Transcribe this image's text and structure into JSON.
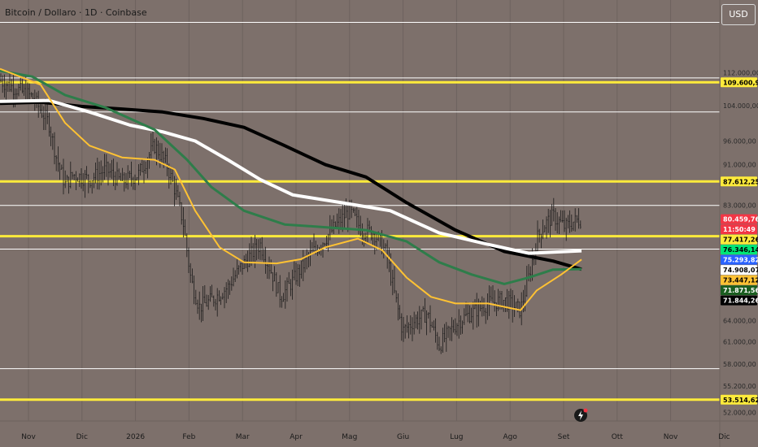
{
  "header": {
    "title": "Bitcoin / Dollaro · 1D · Coinbase"
  },
  "currency_button": {
    "label": "USD"
  },
  "chart_data": {
    "type": "candlestick",
    "title": "Bitcoin / Dollaro · 1D · Coinbase",
    "y_scale": "log",
    "ylim": [
      51000,
      132000
    ],
    "x_tick_labels": [
      "Nov",
      "Dic",
      "2026",
      "Feb",
      "Mar",
      "Apr",
      "Mag",
      "Giu",
      "Lug",
      "Ago",
      "Set",
      "Ott",
      "Nov",
      "Dic"
    ],
    "y_tick_labels": [
      52000,
      55200,
      58000,
      61000,
      64000,
      83000,
      91000,
      96000,
      104000,
      112000
    ],
    "y_tick_text": [
      "52.000,00",
      "55.200,00",
      "58.000,00",
      "61.000,00",
      "64.000,00",
      "83.000,00",
      "91.000,00",
      "96.000,00",
      "104.000,00",
      "112.000,00"
    ],
    "horizontal_levels": {
      "yellow": [
        109600.97,
        87612.25,
        77417.26,
        53514.62
      ],
      "white": [
        125500,
        110700,
        102500,
        83000,
        75200,
        57400
      ]
    },
    "price_labels": [
      {
        "text": "109.600,97",
        "value": 109600.97,
        "bg": "#ffeb3b",
        "fg": "#000000"
      },
      {
        "text": "87.612,25",
        "value": 87612.25,
        "bg": "#ffeb3b",
        "fg": "#000000"
      },
      {
        "text": "80.459,76",
        "value": 80459.76,
        "bg": "#f23645",
        "fg": "#ffffff"
      },
      {
        "text": "11:50:49",
        "value": 79200,
        "bg": "#f23645",
        "fg": "#ffffff"
      },
      {
        "text": "77.417,26",
        "value": 77417.26,
        "bg": "#ffeb3b",
        "fg": "#000000"
      },
      {
        "text": "76.346,14",
        "value": 76346.14,
        "bg": "#00e676",
        "fg": "#000000"
      },
      {
        "text": "75.293,82",
        "value": 75293.82,
        "bg": "#2962ff",
        "fg": "#ffffff"
      },
      {
        "text": "74.908,07",
        "value": 74908.07,
        "bg": "#ffffff",
        "fg": "#000000"
      },
      {
        "text": "73.447,12",
        "value": 73447.12,
        "bg": "#ffc233",
        "fg": "#000000"
      },
      {
        "text": "71.871,56",
        "value": 71871.56,
        "bg": "#1b5e20",
        "fg": "#ffffff"
      },
      {
        "text": "71.844,26",
        "value": 71844.26,
        "bg": "#000000",
        "fg": "#ffffff"
      },
      {
        "text": "53.514,62",
        "value": 53514.62,
        "bg": "#ffeb3b",
        "fg": "#000000"
      }
    ],
    "moving_averages": [
      {
        "color": "#000000",
        "points": [
          [
            0,
            104500
          ],
          [
            50,
            104800
          ],
          [
            100,
            103800
          ],
          [
            150,
            103200
          ],
          [
            200,
            102500
          ],
          [
            250,
            101000
          ],
          [
            300,
            99000
          ],
          [
            350,
            95000
          ],
          [
            400,
            91000
          ],
          [
            450,
            88500
          ],
          [
            500,
            83500
          ],
          [
            560,
            78500
          ],
          [
            620,
            74800
          ],
          [
            680,
            73200
          ],
          [
            715,
            71844
          ]
        ]
      },
      {
        "color": "#ffffff",
        "points": [
          [
            0,
            105000
          ],
          [
            60,
            105200
          ],
          [
            110,
            102500
          ],
          [
            160,
            99500
          ],
          [
            200,
            98000
          ],
          [
            240,
            96000
          ],
          [
            280,
            92000
          ],
          [
            320,
            88000
          ],
          [
            360,
            85000
          ],
          [
            420,
            83500
          ],
          [
            480,
            82000
          ],
          [
            540,
            78000
          ],
          [
            600,
            76000
          ],
          [
            650,
            74500
          ],
          [
            715,
            74908
          ]
        ]
      },
      {
        "color": "#2e7d4a",
        "points": [
          [
            0,
            112500
          ],
          [
            40,
            111000
          ],
          [
            80,
            106500
          ],
          [
            130,
            103500
          ],
          [
            190,
            98500
          ],
          [
            230,
            92000
          ],
          [
            260,
            86500
          ],
          [
            300,
            82000
          ],
          [
            350,
            79500
          ],
          [
            400,
            79000
          ],
          [
            450,
            78500
          ],
          [
            500,
            76500
          ],
          [
            540,
            73000
          ],
          [
            580,
            71000
          ],
          [
            620,
            69500
          ],
          [
            650,
            70500
          ],
          [
            680,
            71800
          ],
          [
            715,
            71872
          ]
        ]
      },
      {
        "color": "#ffc233",
        "points": [
          [
            0,
            113000
          ],
          [
            50,
            109000
          ],
          [
            80,
            100000
          ],
          [
            110,
            95000
          ],
          [
            150,
            92500
          ],
          [
            190,
            92000
          ],
          [
            215,
            90000
          ],
          [
            240,
            82000
          ],
          [
            270,
            75500
          ],
          [
            300,
            73000
          ],
          [
            340,
            72800
          ],
          [
            370,
            73500
          ],
          [
            400,
            75500
          ],
          [
            440,
            77000
          ],
          [
            470,
            75000
          ],
          [
            500,
            70500
          ],
          [
            530,
            67500
          ],
          [
            560,
            66500
          ],
          [
            600,
            66500
          ],
          [
            640,
            65500
          ],
          [
            660,
            68500
          ],
          [
            690,
            71000
          ],
          [
            715,
            73447
          ]
        ]
      }
    ],
    "price_path": [
      [
        0,
        110000
      ],
      [
        20,
        108000
      ],
      [
        40,
        106000
      ],
      [
        60,
        100000
      ],
      [
        70,
        92000
      ],
      [
        80,
        87000
      ],
      [
        90,
        89000
      ],
      [
        110,
        88000
      ],
      [
        130,
        90000
      ],
      [
        150,
        87500
      ],
      [
        170,
        89000
      ],
      [
        190,
        95000
      ],
      [
        205,
        91000
      ],
      [
        215,
        86000
      ],
      [
        225,
        80000
      ],
      [
        235,
        70000
      ],
      [
        245,
        66000
      ],
      [
        260,
        67000
      ],
      [
        280,
        69000
      ],
      [
        295,
        72000
      ],
      [
        310,
        74500
      ],
      [
        320,
        76000
      ],
      [
        335,
        71000
      ],
      [
        345,
        67500
      ],
      [
        360,
        70000
      ],
      [
        380,
        74000
      ],
      [
        400,
        77000
      ],
      [
        420,
        80500
      ],
      [
        430,
        82000
      ],
      [
        445,
        78500
      ],
      [
        460,
        78000
      ],
      [
        475,
        74500
      ],
      [
        485,
        68000
      ],
      [
        495,
        62500
      ],
      [
        510,
        64000
      ],
      [
        525,
        65000
      ],
      [
        540,
        60500
      ],
      [
        550,
        62000
      ],
      [
        565,
        64000
      ],
      [
        585,
        65500
      ],
      [
        600,
        66500
      ],
      [
        620,
        67000
      ],
      [
        640,
        65500
      ],
      [
        650,
        70500
      ],
      [
        660,
        77000
      ],
      [
        670,
        79500
      ],
      [
        680,
        81000
      ],
      [
        695,
        79000
      ],
      [
        705,
        80000
      ],
      [
        715,
        80460
      ]
    ]
  }
}
